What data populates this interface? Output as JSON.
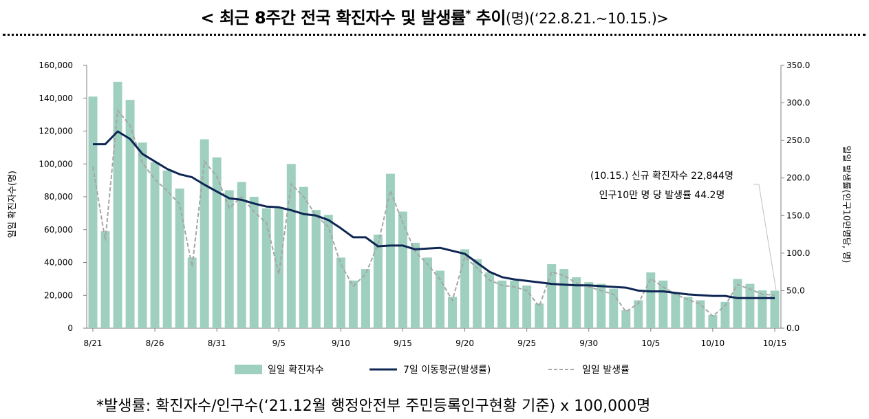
{
  "header": {
    "title_main": "< 최근 8주간 전국 확진자수 및 발생률",
    "title_star": "*",
    "title_mid": " 추이",
    "title_tail": "(명)(‘22.8.21.~10.15.)>"
  },
  "footnote": "*발생률: 확진자수/인구수(‘21.12월 행정안전부 주민등록인구현황 기준) x 100,000명",
  "colors": {
    "bar": "#9fd0bf",
    "moving_avg": "#0e2654",
    "rate": "#a6a6a6",
    "axis": "#7f7f7f"
  },
  "chart_data": {
    "type": "bar",
    "title": "",
    "ylabel": "일일 확진자수(명)",
    "y2label": "일일 발생률(인구10만명당, 명)",
    "ylim": [
      0,
      160000
    ],
    "y2lim": [
      0,
      350
    ],
    "yticks": [
      "0",
      "20,000",
      "40,000",
      "60,000",
      "80,000",
      "100,000",
      "120,000",
      "140,000",
      "160,000"
    ],
    "y2ticks": [
      "0.0",
      "50.0",
      "100.0",
      "150.0",
      "200.0",
      "250.0",
      "300.0",
      "350.0"
    ],
    "x_tick_labels": [
      {
        "index": 0,
        "label": "8/21"
      },
      {
        "index": 5,
        "label": "8/26"
      },
      {
        "index": 10,
        "label": "8/31"
      },
      {
        "index": 15,
        "label": "9/5"
      },
      {
        "index": 20,
        "label": "9/10"
      },
      {
        "index": 25,
        "label": "9/15"
      },
      {
        "index": 30,
        "label": "9/20"
      },
      {
        "index": 35,
        "label": "9/25"
      },
      {
        "index": 40,
        "label": "9/30"
      },
      {
        "index": 45,
        "label": "10/5"
      },
      {
        "index": 50,
        "label": "10/10"
      },
      {
        "index": 55,
        "label": "10/15"
      }
    ],
    "series": [
      {
        "name": "일일 확진자수",
        "axis": "left",
        "kind": "bar",
        "values": [
          141000,
          59000,
          150000,
          139000,
          113000,
          101000,
          96000,
          85000,
          43000,
          115000,
          104000,
          84000,
          89000,
          80000,
          73000,
          73000,
          100000,
          86000,
          72000,
          69000,
          43000,
          29000,
          36000,
          57000,
          94000,
          71000,
          52000,
          43000,
          35000,
          19000,
          48000,
          42000,
          34000,
          29000,
          29000,
          26000,
          15000,
          39000,
          36000,
          31000,
          28000,
          27000,
          24000,
          11000,
          17000,
          34000,
          29000,
          22000,
          19000,
          17000,
          8000,
          16000,
          30000,
          27000,
          23000,
          22844
        ]
      },
      {
        "name": "7일 이동평균(발생률)",
        "axis": "right",
        "kind": "line",
        "values": [
          245,
          245,
          262,
          252,
          232,
          222,
          212,
          205,
          201,
          191,
          182,
          173,
          171,
          166,
          162,
          161,
          157,
          152,
          150,
          144,
          133,
          121,
          121,
          109,
          110,
          110,
          105,
          106,
          107,
          103,
          99,
          87,
          75,
          68,
          65,
          63,
          61,
          59,
          58,
          57,
          57,
          56,
          55,
          54,
          50,
          49,
          49,
          47,
          45,
          44,
          43,
          43,
          40,
          40,
          40,
          40
        ]
      },
      {
        "name": "일일 발생률",
        "axis": "right",
        "kind": "dashed",
        "values": [
          215,
          117,
          290,
          270,
          220,
          198,
          183,
          165,
          82,
          222,
          202,
          160,
          175,
          155,
          140,
          72,
          192,
          175,
          150,
          135,
          85,
          56,
          72,
          112,
          183,
          140,
          102,
          85,
          65,
          37,
          95,
          80,
          64,
          57,
          55,
          50,
          29,
          75,
          70,
          60,
          55,
          50,
          45,
          22,
          33,
          66,
          55,
          45,
          38,
          32,
          16,
          30,
          58,
          52,
          45,
          44.2
        ]
      }
    ],
    "legend": {
      "placement": "bottom"
    },
    "annotation": {
      "line1": "(10.15.) 신규 확진자수 22,844명",
      "line2": "인구10만 명 당 발생률 44.2명"
    }
  }
}
